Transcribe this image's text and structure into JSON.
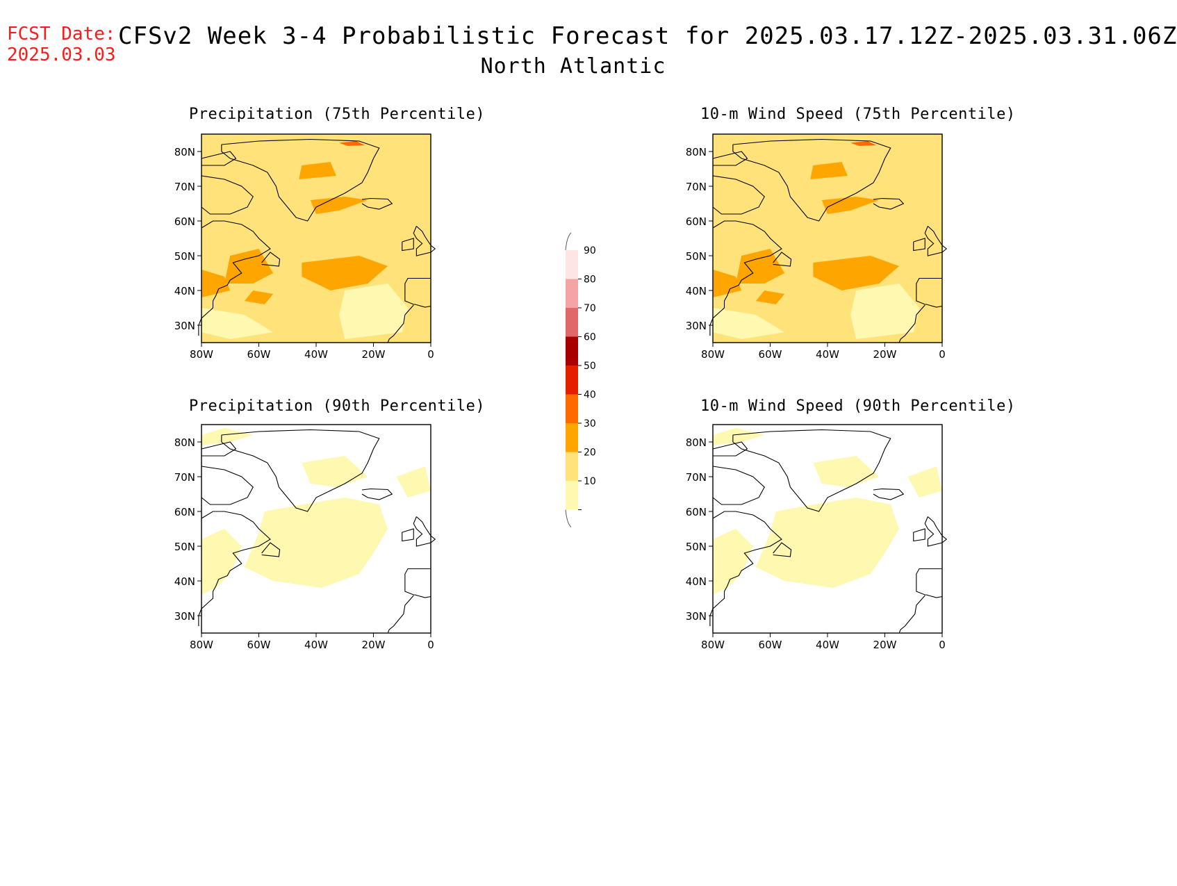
{
  "header": {
    "fcst_label": "FCST Date:",
    "fcst_date": "2025.03.03",
    "title": "CFSv2 Week 3-4 Probabilistic Forecast for 2025.03.17.12Z-2025.03.31.06Z",
    "region": "North Atlantic"
  },
  "panels": [
    {
      "id": "precip75",
      "title": "Precipitation (75th Percentile)",
      "level": "high"
    },
    {
      "id": "wind75",
      "title": "10-m Wind Speed (75th Percentile)",
      "level": "high"
    },
    {
      "id": "precip90",
      "title": "Precipitation (90th Percentile)",
      "level": "low"
    },
    {
      "id": "wind90",
      "title": "10-m Wind Speed (90th Percentile)",
      "level": "low"
    }
  ],
  "axes": {
    "lat_labels": [
      "80N",
      "70N",
      "60N",
      "50N",
      "40N",
      "30N"
    ],
    "lon_labels": [
      "80W",
      "60W",
      "40W",
      "20W",
      "0"
    ],
    "lat_range": [
      25,
      85
    ],
    "lon_range": [
      -80,
      0
    ]
  },
  "colorbar": {
    "ticks": [
      "10",
      "20",
      "30",
      "40",
      "50",
      "60",
      "70",
      "80",
      "90"
    ],
    "colors": [
      "#fff8b0",
      "#ffe27a",
      "#ffa500",
      "#ff6a00",
      "#e61e00",
      "#a80000",
      "#e06868",
      "#f4a4a4",
      "#ffe4e4"
    ]
  }
}
